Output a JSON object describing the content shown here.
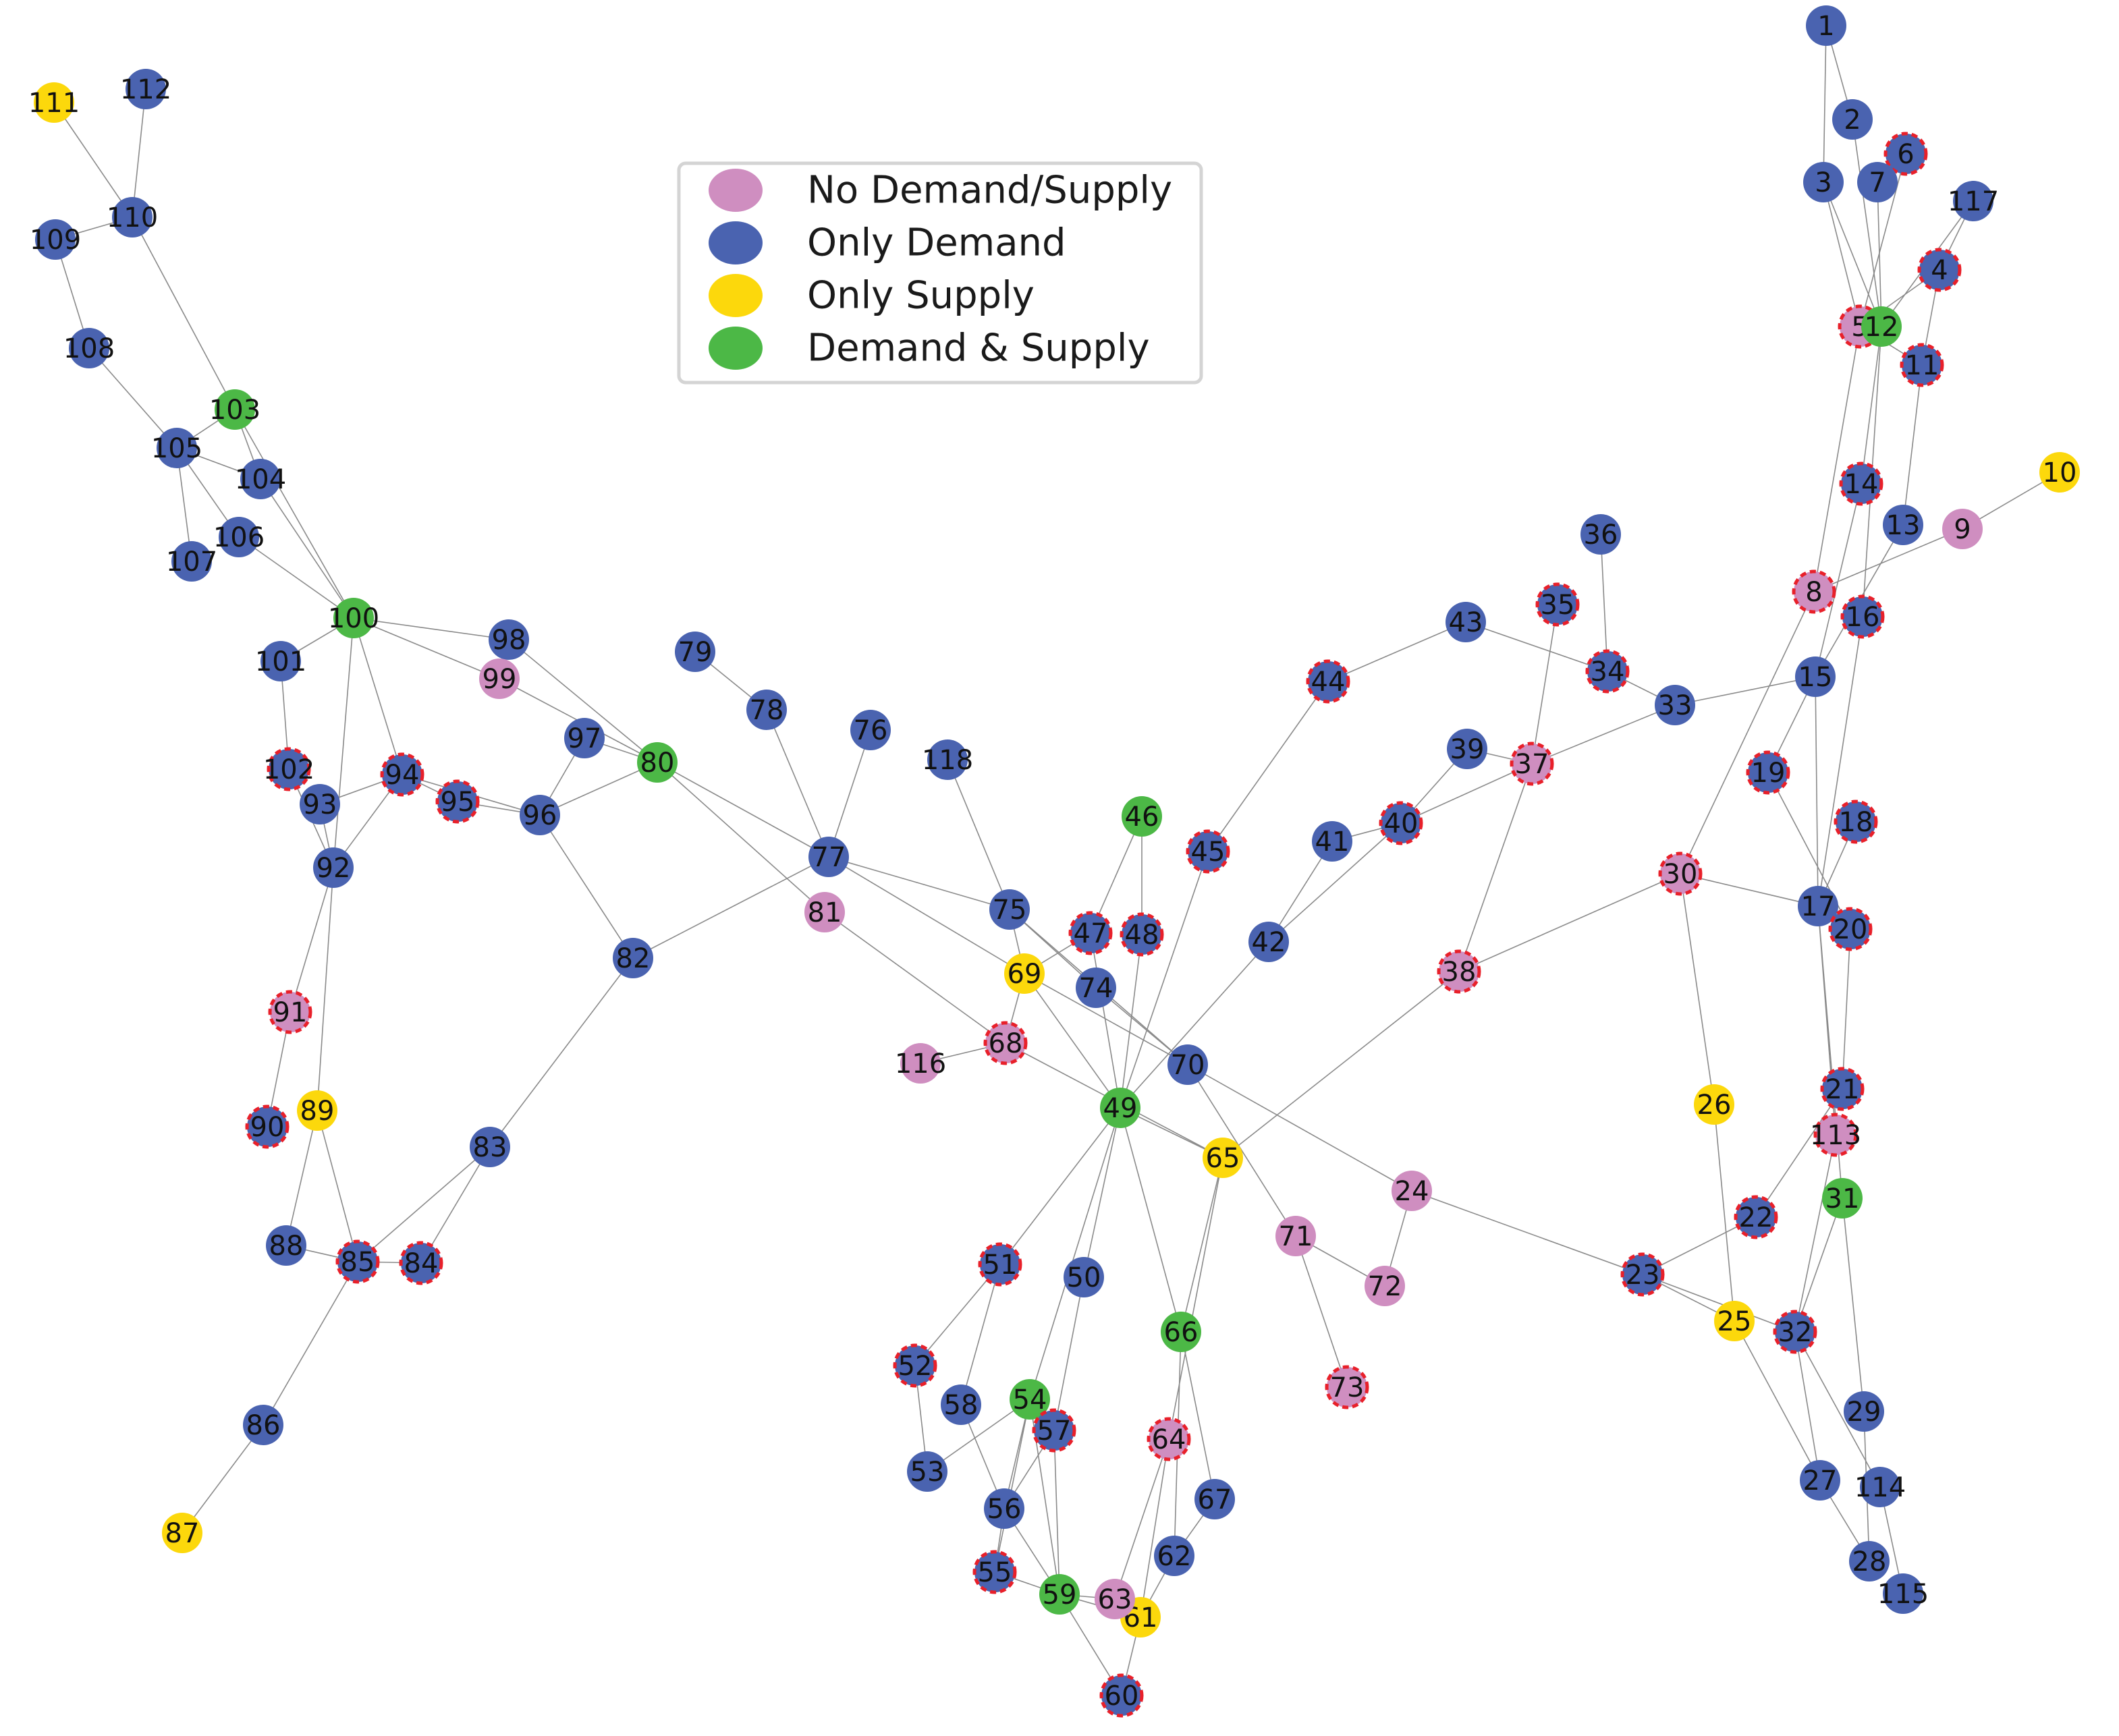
{
  "colors": {
    "no_demand_supply": "#cf8ec0",
    "only_demand": "#4a63b0",
    "only_supply": "#fcd80c",
    "demand_supply": "#4cb846",
    "highlight_outline": "#e8202a",
    "edge": "#8a8a8a"
  },
  "legend": {
    "items": [
      {
        "label": "No Demand/Supply",
        "type": "N"
      },
      {
        "label": "Only Demand",
        "type": "D"
      },
      {
        "label": "Only Supply",
        "type": "S"
      },
      {
        "label": "Demand & Supply",
        "type": "B"
      }
    ]
  },
  "nodes": [
    {
      "id": "1",
      "type": "D",
      "outlined": false
    },
    {
      "id": "2",
      "type": "D",
      "outlined": false
    },
    {
      "id": "3",
      "type": "D",
      "outlined": false
    },
    {
      "id": "4",
      "type": "D",
      "outlined": true
    },
    {
      "id": "5",
      "type": "N",
      "outlined": true
    },
    {
      "id": "6",
      "type": "D",
      "outlined": true
    },
    {
      "id": "7",
      "type": "D",
      "outlined": false
    },
    {
      "id": "8",
      "type": "N",
      "outlined": true
    },
    {
      "id": "9",
      "type": "N",
      "outlined": false
    },
    {
      "id": "10",
      "type": "S",
      "outlined": false
    },
    {
      "id": "11",
      "type": "D",
      "outlined": true
    },
    {
      "id": "12",
      "type": "B",
      "outlined": false
    },
    {
      "id": "13",
      "type": "D",
      "outlined": false
    },
    {
      "id": "14",
      "type": "D",
      "outlined": true
    },
    {
      "id": "15",
      "type": "D",
      "outlined": false
    },
    {
      "id": "16",
      "type": "D",
      "outlined": true
    },
    {
      "id": "17",
      "type": "D",
      "outlined": false
    },
    {
      "id": "18",
      "type": "D",
      "outlined": true
    },
    {
      "id": "19",
      "type": "D",
      "outlined": true
    },
    {
      "id": "20",
      "type": "D",
      "outlined": true
    },
    {
      "id": "21",
      "type": "D",
      "outlined": true
    },
    {
      "id": "22",
      "type": "D",
      "outlined": true
    },
    {
      "id": "23",
      "type": "D",
      "outlined": true
    },
    {
      "id": "24",
      "type": "N",
      "outlined": false
    },
    {
      "id": "25",
      "type": "S",
      "outlined": false
    },
    {
      "id": "26",
      "type": "S",
      "outlined": false
    },
    {
      "id": "27",
      "type": "D",
      "outlined": false
    },
    {
      "id": "28",
      "type": "D",
      "outlined": false
    },
    {
      "id": "29",
      "type": "D",
      "outlined": false
    },
    {
      "id": "30",
      "type": "N",
      "outlined": true
    },
    {
      "id": "31",
      "type": "B",
      "outlined": false
    },
    {
      "id": "32",
      "type": "D",
      "outlined": true
    },
    {
      "id": "33",
      "type": "D",
      "outlined": false
    },
    {
      "id": "34",
      "type": "D",
      "outlined": true
    },
    {
      "id": "35",
      "type": "D",
      "outlined": true
    },
    {
      "id": "36",
      "type": "D",
      "outlined": false
    },
    {
      "id": "37",
      "type": "N",
      "outlined": true
    },
    {
      "id": "38",
      "type": "N",
      "outlined": true
    },
    {
      "id": "39",
      "type": "D",
      "outlined": false
    },
    {
      "id": "40",
      "type": "D",
      "outlined": true
    },
    {
      "id": "41",
      "type": "D",
      "outlined": false
    },
    {
      "id": "42",
      "type": "D",
      "outlined": false
    },
    {
      "id": "43",
      "type": "D",
      "outlined": false
    },
    {
      "id": "44",
      "type": "D",
      "outlined": true
    },
    {
      "id": "45",
      "type": "D",
      "outlined": true
    },
    {
      "id": "46",
      "type": "B",
      "outlined": false
    },
    {
      "id": "47",
      "type": "D",
      "outlined": true
    },
    {
      "id": "48",
      "type": "D",
      "outlined": true
    },
    {
      "id": "49",
      "type": "B",
      "outlined": false
    },
    {
      "id": "50",
      "type": "D",
      "outlined": false
    },
    {
      "id": "51",
      "type": "D",
      "outlined": true
    },
    {
      "id": "52",
      "type": "D",
      "outlined": true
    },
    {
      "id": "53",
      "type": "D",
      "outlined": false
    },
    {
      "id": "54",
      "type": "B",
      "outlined": false
    },
    {
      "id": "55",
      "type": "D",
      "outlined": true
    },
    {
      "id": "56",
      "type": "D",
      "outlined": false
    },
    {
      "id": "57",
      "type": "D",
      "outlined": true
    },
    {
      "id": "58",
      "type": "D",
      "outlined": false
    },
    {
      "id": "59",
      "type": "B",
      "outlined": false
    },
    {
      "id": "60",
      "type": "D",
      "outlined": true
    },
    {
      "id": "61",
      "type": "S",
      "outlined": false
    },
    {
      "id": "62",
      "type": "D",
      "outlined": false
    },
    {
      "id": "63",
      "type": "N",
      "outlined": false
    },
    {
      "id": "64",
      "type": "N",
      "outlined": true
    },
    {
      "id": "65",
      "type": "S",
      "outlined": false
    },
    {
      "id": "66",
      "type": "B",
      "outlined": false
    },
    {
      "id": "67",
      "type": "D",
      "outlined": false
    },
    {
      "id": "68",
      "type": "N",
      "outlined": true
    },
    {
      "id": "69",
      "type": "S",
      "outlined": false
    },
    {
      "id": "70",
      "type": "D",
      "outlined": false
    },
    {
      "id": "71",
      "type": "N",
      "outlined": false
    },
    {
      "id": "72",
      "type": "N",
      "outlined": false
    },
    {
      "id": "73",
      "type": "N",
      "outlined": true
    },
    {
      "id": "74",
      "type": "D",
      "outlined": false
    },
    {
      "id": "75",
      "type": "D",
      "outlined": false
    },
    {
      "id": "76",
      "type": "D",
      "outlined": false
    },
    {
      "id": "77",
      "type": "D",
      "outlined": false
    },
    {
      "id": "78",
      "type": "D",
      "outlined": false
    },
    {
      "id": "79",
      "type": "D",
      "outlined": false
    },
    {
      "id": "80",
      "type": "B",
      "outlined": false
    },
    {
      "id": "81",
      "type": "N",
      "outlined": false
    },
    {
      "id": "82",
      "type": "D",
      "outlined": false
    },
    {
      "id": "83",
      "type": "D",
      "outlined": false
    },
    {
      "id": "84",
      "type": "D",
      "outlined": true
    },
    {
      "id": "85",
      "type": "D",
      "outlined": true
    },
    {
      "id": "86",
      "type": "D",
      "outlined": false
    },
    {
      "id": "87",
      "type": "S",
      "outlined": false
    },
    {
      "id": "88",
      "type": "D",
      "outlined": false
    },
    {
      "id": "89",
      "type": "S",
      "outlined": false
    },
    {
      "id": "90",
      "type": "D",
      "outlined": true
    },
    {
      "id": "91",
      "type": "N",
      "outlined": true
    },
    {
      "id": "92",
      "type": "D",
      "outlined": false
    },
    {
      "id": "93",
      "type": "D",
      "outlined": false
    },
    {
      "id": "94",
      "type": "D",
      "outlined": true
    },
    {
      "id": "95",
      "type": "D",
      "outlined": true
    },
    {
      "id": "96",
      "type": "D",
      "outlined": false
    },
    {
      "id": "97",
      "type": "D",
      "outlined": false
    },
    {
      "id": "98",
      "type": "D",
      "outlined": false
    },
    {
      "id": "99",
      "type": "N",
      "outlined": false
    },
    {
      "id": "100",
      "type": "B",
      "outlined": false
    },
    {
      "id": "101",
      "type": "D",
      "outlined": false
    },
    {
      "id": "102",
      "type": "D",
      "outlined": true
    },
    {
      "id": "103",
      "type": "B",
      "outlined": false
    },
    {
      "id": "104",
      "type": "D",
      "outlined": false
    },
    {
      "id": "105",
      "type": "D",
      "outlined": false
    },
    {
      "id": "106",
      "type": "D",
      "outlined": false
    },
    {
      "id": "107",
      "type": "D",
      "outlined": false
    },
    {
      "id": "108",
      "type": "D",
      "outlined": false
    },
    {
      "id": "109",
      "type": "D",
      "outlined": false
    },
    {
      "id": "110",
      "type": "D",
      "outlined": false
    },
    {
      "id": "111",
      "type": "S",
      "outlined": false
    },
    {
      "id": "112",
      "type": "D",
      "outlined": false
    },
    {
      "id": "113",
      "type": "N",
      "outlined": true
    },
    {
      "id": "114",
      "type": "D",
      "outlined": false
    },
    {
      "id": "115",
      "type": "D",
      "outlined": false
    },
    {
      "id": "116",
      "type": "N",
      "outlined": false
    },
    {
      "id": "117",
      "type": "D",
      "outlined": false
    },
    {
      "id": "118",
      "type": "D",
      "outlined": false
    }
  ],
  "edges": [
    [
      "1",
      "2"
    ],
    [
      "1",
      "3"
    ],
    [
      "2",
      "12"
    ],
    [
      "3",
      "5"
    ],
    [
      "3",
      "12"
    ],
    [
      "7",
      "12"
    ],
    [
      "6",
      "7"
    ],
    [
      "4",
      "5"
    ],
    [
      "4",
      "11"
    ],
    [
      "4",
      "117"
    ],
    [
      "5",
      "6"
    ],
    [
      "5",
      "11"
    ],
    [
      "12",
      "117"
    ],
    [
      "5",
      "8"
    ],
    [
      "12",
      "14"
    ],
    [
      "12",
      "16"
    ],
    [
      "11",
      "13"
    ],
    [
      "13",
      "15"
    ],
    [
      "14",
      "15"
    ],
    [
      "8",
      "9"
    ],
    [
      "9",
      "10"
    ],
    [
      "8",
      "30"
    ],
    [
      "16",
      "17"
    ],
    [
      "15",
      "17"
    ],
    [
      "15",
      "33"
    ],
    [
      "17",
      "18"
    ],
    [
      "15",
      "19"
    ],
    [
      "19",
      "20"
    ],
    [
      "17",
      "30"
    ],
    [
      "17",
      "31"
    ],
    [
      "17",
      "113"
    ],
    [
      "20",
      "21"
    ],
    [
      "21",
      "22"
    ],
    [
      "22",
      "23"
    ],
    [
      "23",
      "24"
    ],
    [
      "23",
      "25"
    ],
    [
      "23",
      "32"
    ],
    [
      "25",
      "26"
    ],
    [
      "25",
      "27"
    ],
    [
      "26",
      "30"
    ],
    [
      "31",
      "32"
    ],
    [
      "31",
      "29"
    ],
    [
      "32",
      "113"
    ],
    [
      "32",
      "114"
    ],
    [
      "27",
      "32"
    ],
    [
      "27",
      "28"
    ],
    [
      "28",
      "29"
    ],
    [
      "114",
      "115"
    ],
    [
      "24",
      "70"
    ],
    [
      "24",
      "72"
    ],
    [
      "33",
      "34"
    ],
    [
      "33",
      "37"
    ],
    [
      "34",
      "36"
    ],
    [
      "34",
      "43"
    ],
    [
      "35",
      "37"
    ],
    [
      "37",
      "38"
    ],
    [
      "37",
      "40"
    ],
    [
      "37",
      "39"
    ],
    [
      "38",
      "30"
    ],
    [
      "38",
      "65"
    ],
    [
      "39",
      "40"
    ],
    [
      "40",
      "41"
    ],
    [
      "40",
      "42"
    ],
    [
      "41",
      "42"
    ],
    [
      "42",
      "49"
    ],
    [
      "43",
      "44"
    ],
    [
      "44",
      "45"
    ],
    [
      "45",
      "49"
    ],
    [
      "46",
      "47"
    ],
    [
      "46",
      "48"
    ],
    [
      "47",
      "69"
    ],
    [
      "48",
      "49"
    ],
    [
      "47",
      "49"
    ],
    [
      "49",
      "50"
    ],
    [
      "49",
      "51"
    ],
    [
      "49",
      "54"
    ],
    [
      "49",
      "66"
    ],
    [
      "49",
      "65"
    ],
    [
      "49",
      "69"
    ],
    [
      "50",
      "57"
    ],
    [
      "51",
      "52"
    ],
    [
      "51",
      "58"
    ],
    [
      "52",
      "53"
    ],
    [
      "53",
      "54"
    ],
    [
      "54",
      "55"
    ],
    [
      "54",
      "56"
    ],
    [
      "54",
      "59"
    ],
    [
      "55",
      "56"
    ],
    [
      "55",
      "59"
    ],
    [
      "56",
      "57"
    ],
    [
      "56",
      "58"
    ],
    [
      "56",
      "59"
    ],
    [
      "57",
      "59"
    ],
    [
      "59",
      "60"
    ],
    [
      "59",
      "61"
    ],
    [
      "59",
      "63"
    ],
    [
      "60",
      "61"
    ],
    [
      "61",
      "62"
    ],
    [
      "61",
      "64"
    ],
    [
      "62",
      "66"
    ],
    [
      "62",
      "67"
    ],
    [
      "63",
      "64"
    ],
    [
      "64",
      "65"
    ],
    [
      "65",
      "66"
    ],
    [
      "65",
      "68"
    ],
    [
      "66",
      "67"
    ],
    [
      "68",
      "69"
    ],
    [
      "68",
      "81"
    ],
    [
      "68",
      "116"
    ],
    [
      "69",
      "70"
    ],
    [
      "69",
      "75"
    ],
    [
      "69",
      "77"
    ],
    [
      "70",
      "71"
    ],
    [
      "70",
      "74"
    ],
    [
      "70",
      "75"
    ],
    [
      "71",
      "72"
    ],
    [
      "71",
      "73"
    ],
    [
      "74",
      "75"
    ],
    [
      "75",
      "77"
    ],
    [
      "75",
      "118"
    ],
    [
      "76",
      "77"
    ],
    [
      "77",
      "78"
    ],
    [
      "77",
      "80"
    ],
    [
      "77",
      "82"
    ],
    [
      "78",
      "79"
    ],
    [
      "80",
      "96"
    ],
    [
      "80",
      "97"
    ],
    [
      "80",
      "98"
    ],
    [
      "80",
      "99"
    ],
    [
      "80",
      "81"
    ],
    [
      "82",
      "83"
    ],
    [
      "82",
      "96"
    ],
    [
      "83",
      "84"
    ],
    [
      "83",
      "85"
    ],
    [
      "84",
      "85"
    ],
    [
      "85",
      "86"
    ],
    [
      "85",
      "88"
    ],
    [
      "85",
      "89"
    ],
    [
      "86",
      "87"
    ],
    [
      "88",
      "89"
    ],
    [
      "89",
      "92"
    ],
    [
      "90",
      "91"
    ],
    [
      "91",
      "92"
    ],
    [
      "92",
      "93"
    ],
    [
      "92",
      "94"
    ],
    [
      "92",
      "100"
    ],
    [
      "92",
      "102"
    ],
    [
      "93",
      "94"
    ],
    [
      "94",
      "95"
    ],
    [
      "94",
      "96"
    ],
    [
      "94",
      "100"
    ],
    [
      "95",
      "96"
    ],
    [
      "96",
      "97"
    ],
    [
      "99",
      "100"
    ],
    [
      "98",
      "100"
    ],
    [
      "100",
      "101"
    ],
    [
      "100",
      "103"
    ],
    [
      "100",
      "104"
    ],
    [
      "100",
      "106"
    ],
    [
      "101",
      "102"
    ],
    [
      "103",
      "104"
    ],
    [
      "103",
      "105"
    ],
    [
      "103",
      "110"
    ],
    [
      "104",
      "105"
    ],
    [
      "105",
      "106"
    ],
    [
      "105",
      "107"
    ],
    [
      "105",
      "108"
    ],
    [
      "108",
      "109"
    ],
    [
      "109",
      "110"
    ],
    [
      "110",
      "111"
    ],
    [
      "110",
      "112"
    ]
  ]
}
